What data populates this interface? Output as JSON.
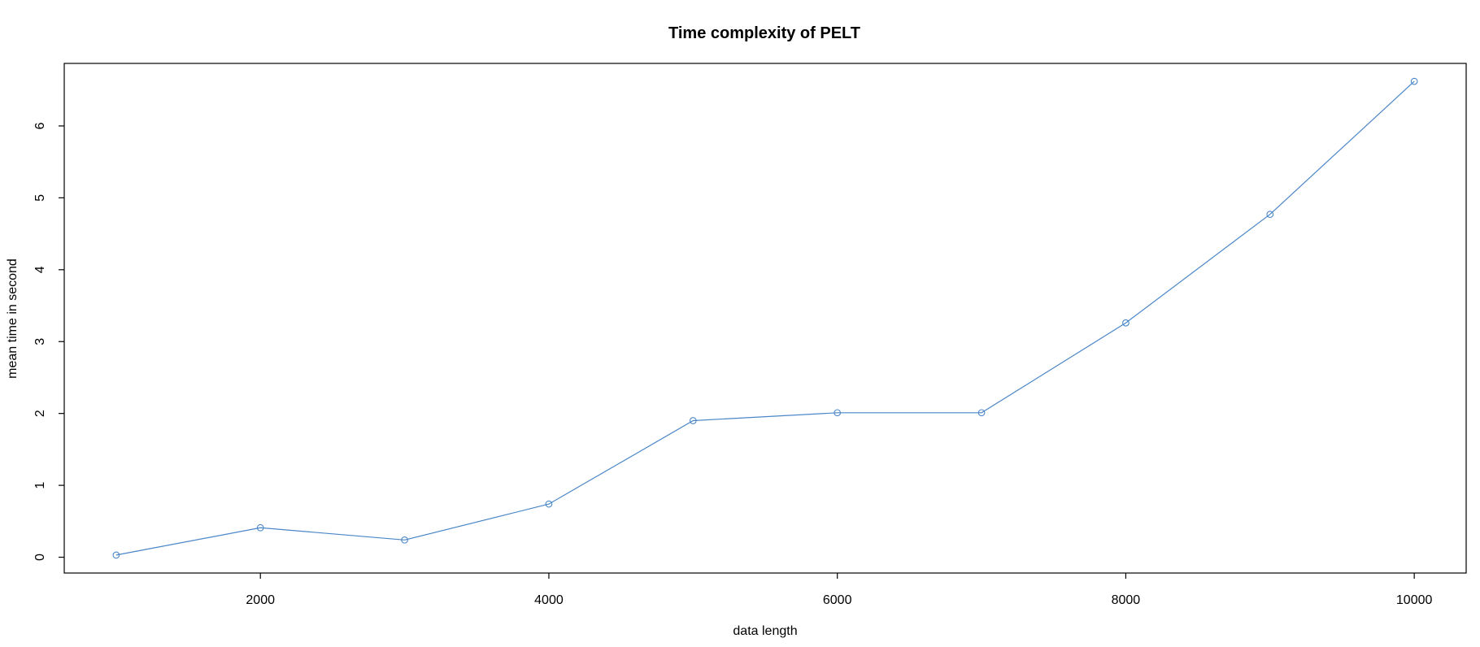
{
  "chart_data": {
    "type": "line",
    "title": "Time complexity of PELT",
    "xlabel": "data length",
    "ylabel": "mean time in second",
    "x": [
      1000,
      2000,
      3000,
      4000,
      5000,
      6000,
      7000,
      8000,
      9000,
      10000
    ],
    "series": [
      {
        "values": [
          0.03,
          0.41,
          0.24,
          0.74,
          1.9,
          2.01,
          2.01,
          3.26,
          4.77,
          6.62
        ]
      }
    ],
    "xlim": [
      640,
      10360
    ],
    "ylim": [
      -0.22,
      6.87
    ],
    "xticks": [
      2000,
      4000,
      6000,
      8000,
      10000
    ],
    "yticks": [
      0,
      1,
      2,
      3,
      4,
      5,
      6
    ],
    "grid": false,
    "legend": "none",
    "colors": {
      "series": "#4a86c8",
      "axis": "#000000"
    }
  }
}
